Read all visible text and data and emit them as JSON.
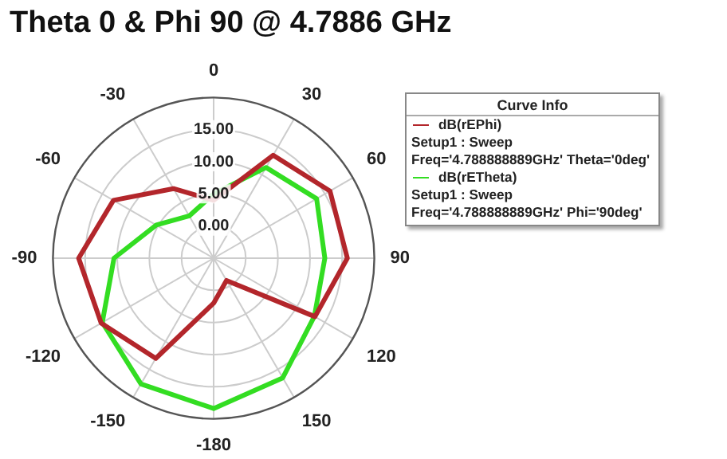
{
  "chart_data": {
    "type": "radar",
    "title": "Theta 0 & Phi 90 @ 4.7886 GHz",
    "categories": [
      "0",
      "30",
      "60",
      "90",
      "120",
      "150",
      "-180",
      "-150",
      "-120",
      "-90",
      "-60",
      "-30"
    ],
    "series": [
      {
        "name": "dB(rEPhi)",
        "color": "#b3262b",
        "values": [
          4,
          13.5,
          15.9,
          15.8,
          13.2,
          -1,
          2,
          13,
          15.2,
          16,
          13,
          7.5
        ]
      },
      {
        "name": "dB(rETheta)",
        "color": "#33dd22",
        "values": [
          5,
          11.3,
          13.5,
          12.3,
          13.1,
          16.5,
          18.4,
          17.6,
          15,
          10.5,
          5.3,
          2.6
        ]
      }
    ],
    "ylim": [
      -5,
      20
    ],
    "yticks": [
      {
        "value": 0,
        "label": "0.00"
      },
      {
        "value": 5,
        "label": "5.00"
      },
      {
        "value": 10,
        "label": "10.00"
      },
      {
        "value": 15,
        "label": "15.00"
      }
    ],
    "grid": true,
    "legend": "top right",
    "legend_title": "Curve Info",
    "marker": "none",
    "line_style": "solid",
    "annotations": [
      "Setup1 : Sweep",
      "Freq='4.788888889GHz' Theta='0deg'",
      "Setup1 : Sweep",
      "Freq='4.788888889GHz' Phi='90deg'"
    ]
  }
}
